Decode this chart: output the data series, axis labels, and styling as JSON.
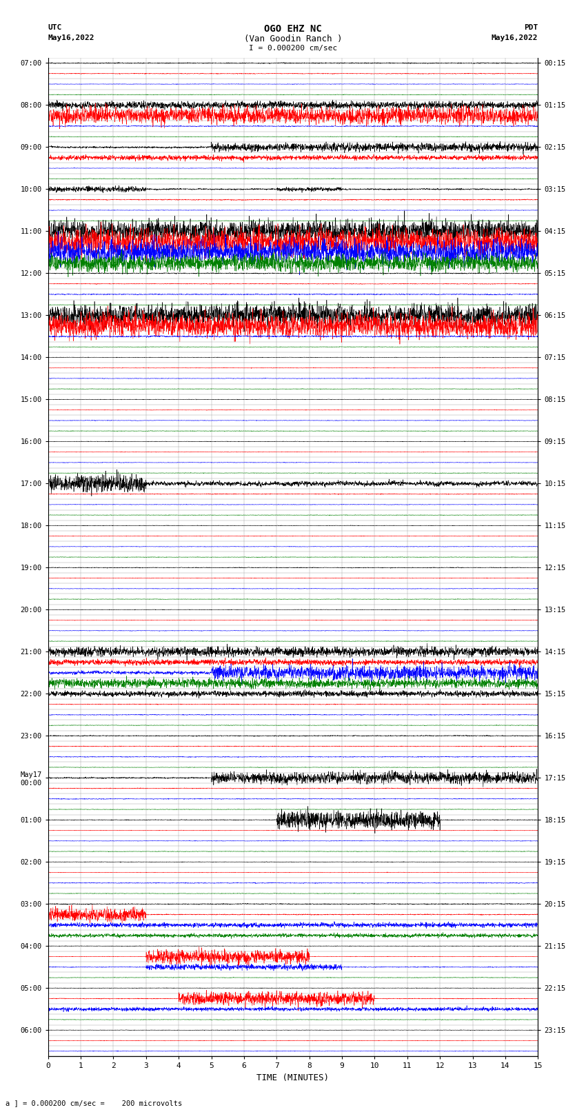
{
  "title_line1": "OGO EHZ NC",
  "title_line2": "(Van Goodin Ranch )",
  "title_line3": "I = 0.000200 cm/sec",
  "left_label_top": "UTC",
  "left_date_top": "May16,2022",
  "right_label_top": "PDT",
  "right_date_top": "May16,2022",
  "left_date_bottom": "May17",
  "xlabel": "TIME (MINUTES)",
  "footer": "a ] = 0.000200 cm/sec =    200 microvolts",
  "utc_times": [
    "07:00",
    "",
    "",
    "",
    "08:00",
    "",
    "",
    "",
    "09:00",
    "",
    "",
    "",
    "10:00",
    "",
    "",
    "",
    "11:00",
    "",
    "",
    "",
    "12:00",
    "",
    "",
    "",
    "13:00",
    "",
    "",
    "",
    "14:00",
    "",
    "",
    "",
    "15:00",
    "",
    "",
    "",
    "16:00",
    "",
    "",
    "",
    "17:00",
    "",
    "",
    "",
    "18:00",
    "",
    "",
    "",
    "19:00",
    "",
    "",
    "",
    "20:00",
    "",
    "",
    "",
    "21:00",
    "",
    "",
    "",
    "22:00",
    "",
    "",
    "",
    "23:00",
    "",
    "",
    "",
    "May17\n00:00",
    "",
    "",
    "",
    "01:00",
    "",
    "",
    "",
    "02:00",
    "",
    "",
    "",
    "03:00",
    "",
    "",
    "",
    "04:00",
    "",
    "",
    "",
    "05:00",
    "",
    "",
    "",
    "06:00",
    "",
    ""
  ],
  "pdt_times": [
    "00:15",
    "",
    "",
    "",
    "01:15",
    "",
    "",
    "",
    "02:15",
    "",
    "",
    "",
    "03:15",
    "",
    "",
    "",
    "04:15",
    "",
    "",
    "",
    "05:15",
    "",
    "",
    "",
    "06:15",
    "",
    "",
    "",
    "07:15",
    "",
    "",
    "",
    "08:15",
    "",
    "",
    "",
    "09:15",
    "",
    "",
    "",
    "10:15",
    "",
    "",
    "",
    "11:15",
    "",
    "",
    "",
    "12:15",
    "",
    "",
    "",
    "13:15",
    "",
    "",
    "",
    "14:15",
    "",
    "",
    "",
    "15:15",
    "",
    "",
    "",
    "16:15",
    "",
    "",
    "",
    "17:15",
    "",
    "",
    "",
    "18:15",
    "",
    "",
    "",
    "19:15",
    "",
    "",
    "",
    "20:15",
    "",
    "",
    "",
    "21:15",
    "",
    "",
    "",
    "22:15",
    "",
    "",
    "",
    "23:15",
    "",
    ""
  ],
  "n_rows": 95,
  "x_min": 0,
  "x_max": 15,
  "trace_colors_cycle": [
    "black",
    "red",
    "blue",
    "green"
  ],
  "background_color": "white",
  "grid_color": "#888888",
  "figsize": [
    8.5,
    16.13
  ],
  "dpi": 100,
  "row_descriptions": {
    "0": {
      "noise": 0.04,
      "bursts": []
    },
    "1": {
      "noise": 0.03,
      "bursts": []
    },
    "2": {
      "noise": 0.02,
      "bursts": []
    },
    "3": {
      "noise": 0.02,
      "bursts": []
    },
    "4": {
      "noise": 0.1,
      "bursts": [
        {
          "s": 0,
          "e": 15,
          "a": 0.15
        }
      ]
    },
    "5": {
      "noise": 0.25,
      "bursts": [
        {
          "s": 0,
          "e": 15,
          "a": 0.35
        }
      ]
    },
    "6": {
      "noise": 0.04,
      "bursts": []
    },
    "7": {
      "noise": 0.02,
      "bursts": []
    },
    "8": {
      "noise": 0.08,
      "bursts": [
        {
          "s": 5,
          "e": 15,
          "a": 0.18
        }
      ]
    },
    "9": {
      "noise": 0.05,
      "bursts": [
        {
          "s": 0,
          "e": 15,
          "a": 0.1
        }
      ]
    },
    "10": {
      "noise": 0.02,
      "bursts": []
    },
    "11": {
      "noise": 0.02,
      "bursts": []
    },
    "12": {
      "noise": 0.06,
      "bursts": [
        {
          "s": 0,
          "e": 3,
          "a": 0.12
        },
        {
          "s": 7,
          "e": 9,
          "a": 0.08
        }
      ]
    },
    "13": {
      "noise": 0.04,
      "bursts": []
    },
    "14": {
      "noise": 0.02,
      "bursts": []
    },
    "15": {
      "noise": 0.02,
      "bursts": []
    },
    "16": {
      "noise": 0.35,
      "bursts": [
        {
          "s": 0,
          "e": 15,
          "a": 0.45
        }
      ]
    },
    "17": {
      "noise": 0.4,
      "bursts": [
        {
          "s": 0,
          "e": 15,
          "a": 0.55
        }
      ]
    },
    "18": {
      "noise": 0.38,
      "bursts": [
        {
          "s": 0,
          "e": 15,
          "a": 0.5
        }
      ]
    },
    "19": {
      "noise": 0.25,
      "bursts": [
        {
          "s": 0,
          "e": 15,
          "a": 0.35
        }
      ]
    },
    "20": {
      "noise": 0.04,
      "bursts": []
    },
    "21": {
      "noise": 0.03,
      "bursts": []
    },
    "22": {
      "noise": 0.04,
      "bursts": []
    },
    "23": {
      "noise": 0.02,
      "bursts": []
    },
    "24": {
      "noise": 0.35,
      "bursts": [
        {
          "s": 0,
          "e": 15,
          "a": 0.45
        }
      ]
    },
    "25": {
      "noise": 0.4,
      "bursts": [
        {
          "s": 0,
          "e": 15,
          "a": 0.5
        }
      ]
    },
    "26": {
      "noise": 0.06,
      "bursts": []
    },
    "27": {
      "noise": 0.02,
      "bursts": []
    },
    "28": {
      "noise": 0.02,
      "bursts": []
    },
    "29": {
      "noise": 0.02,
      "bursts": []
    },
    "30": {
      "noise": 0.02,
      "bursts": []
    },
    "31": {
      "noise": 0.02,
      "bursts": []
    },
    "32": {
      "noise": 0.02,
      "bursts": []
    },
    "33": {
      "noise": 0.02,
      "bursts": []
    },
    "34": {
      "noise": 0.02,
      "bursts": []
    },
    "35": {
      "noise": 0.02,
      "bursts": []
    },
    "36": {
      "noise": 0.02,
      "bursts": []
    },
    "37": {
      "noise": 0.02,
      "bursts": []
    },
    "38": {
      "noise": 0.02,
      "bursts": []
    },
    "39": {
      "noise": 0.02,
      "bursts": []
    },
    "40": {
      "noise": 0.2,
      "bursts": [
        {
          "s": 0,
          "e": 3,
          "a": 0.35
        }
      ]
    },
    "41": {
      "noise": 0.03,
      "bursts": []
    },
    "42": {
      "noise": 0.02,
      "bursts": []
    },
    "43": {
      "noise": 0.02,
      "bursts": []
    },
    "44": {
      "noise": 0.02,
      "bursts": []
    },
    "45": {
      "noise": 0.02,
      "bursts": []
    },
    "46": {
      "noise": 0.02,
      "bursts": []
    },
    "47": {
      "noise": 0.02,
      "bursts": []
    },
    "48": {
      "noise": 0.03,
      "bursts": []
    },
    "49": {
      "noise": 0.02,
      "bursts": []
    },
    "50": {
      "noise": 0.02,
      "bursts": []
    },
    "51": {
      "noise": 0.02,
      "bursts": []
    },
    "52": {
      "noise": 0.02,
      "bursts": []
    },
    "53": {
      "noise": 0.02,
      "bursts": []
    },
    "54": {
      "noise": 0.02,
      "bursts": []
    },
    "55": {
      "noise": 0.02,
      "bursts": []
    },
    "56": {
      "noise": 0.08,
      "bursts": [
        {
          "s": 0,
          "e": 15,
          "a": 0.2
        }
      ]
    },
    "57": {
      "noise": 0.06,
      "bursts": [
        {
          "s": 0,
          "e": 15,
          "a": 0.12
        }
      ]
    },
    "58": {
      "noise": 0.15,
      "bursts": [
        {
          "s": 5,
          "e": 15,
          "a": 0.3
        }
      ]
    },
    "59": {
      "noise": 0.08,
      "bursts": [
        {
          "s": 0,
          "e": 15,
          "a": 0.2
        }
      ]
    },
    "60": {
      "noise": 0.06,
      "bursts": [
        {
          "s": 0,
          "e": 15,
          "a": 0.12
        }
      ]
    },
    "61": {
      "noise": 0.03,
      "bursts": []
    },
    "62": {
      "noise": 0.03,
      "bursts": []
    },
    "63": {
      "noise": 0.02,
      "bursts": []
    },
    "64": {
      "noise": 0.04,
      "bursts": []
    },
    "65": {
      "noise": 0.03,
      "bursts": []
    },
    "66": {
      "noise": 0.03,
      "bursts": []
    },
    "67": {
      "noise": 0.02,
      "bursts": []
    },
    "68": {
      "noise": 0.06,
      "bursts": [
        {
          "s": 5,
          "e": 15,
          "a": 0.25
        }
      ]
    },
    "69": {
      "noise": 0.03,
      "bursts": []
    },
    "70": {
      "noise": 0.03,
      "bursts": []
    },
    "71": {
      "noise": 0.02,
      "bursts": []
    },
    "72": {
      "noise": 0.03,
      "bursts": [
        {
          "s": 7,
          "e": 12,
          "a": 0.4
        }
      ]
    },
    "73": {
      "noise": 0.02,
      "bursts": []
    },
    "74": {
      "noise": 0.02,
      "bursts": []
    },
    "75": {
      "noise": 0.02,
      "bursts": []
    },
    "76": {
      "noise": 0.02,
      "bursts": []
    },
    "77": {
      "noise": 0.02,
      "bursts": []
    },
    "78": {
      "noise": 0.03,
      "bursts": []
    },
    "79": {
      "noise": 0.02,
      "bursts": []
    },
    "80": {
      "noise": 0.04,
      "bursts": []
    },
    "81": {
      "noise": 0.04,
      "bursts": [
        {
          "s": 0,
          "e": 3,
          "a": 0.3
        }
      ]
    },
    "82": {
      "noise": 0.03,
      "bursts": [
        {
          "s": 0,
          "e": 15,
          "a": 0.1
        }
      ]
    },
    "83": {
      "noise": 0.04,
      "bursts": [
        {
          "s": 0,
          "e": 15,
          "a": 0.08
        }
      ]
    },
    "84": {
      "noise": 0.02,
      "bursts": []
    },
    "85": {
      "noise": 0.02,
      "bursts": [
        {
          "s": 3,
          "e": 8,
          "a": 0.3
        }
      ]
    },
    "86": {
      "noise": 0.03,
      "bursts": [
        {
          "s": 3,
          "e": 9,
          "a": 0.12
        }
      ]
    },
    "87": {
      "noise": 0.02,
      "bursts": []
    },
    "88": {
      "noise": 0.02,
      "bursts": []
    },
    "89": {
      "noise": 0.03,
      "bursts": [
        {
          "s": 4,
          "e": 10,
          "a": 0.28
        }
      ]
    },
    "90": {
      "noise": 0.03,
      "bursts": [
        {
          "s": 0,
          "e": 15,
          "a": 0.08
        }
      ]
    },
    "91": {
      "noise": 0.02,
      "bursts": []
    },
    "92": {
      "noise": 0.02,
      "bursts": []
    },
    "93": {
      "noise": 0.02,
      "bursts": []
    },
    "94": {
      "noise": 0.02,
      "bursts": []
    }
  }
}
